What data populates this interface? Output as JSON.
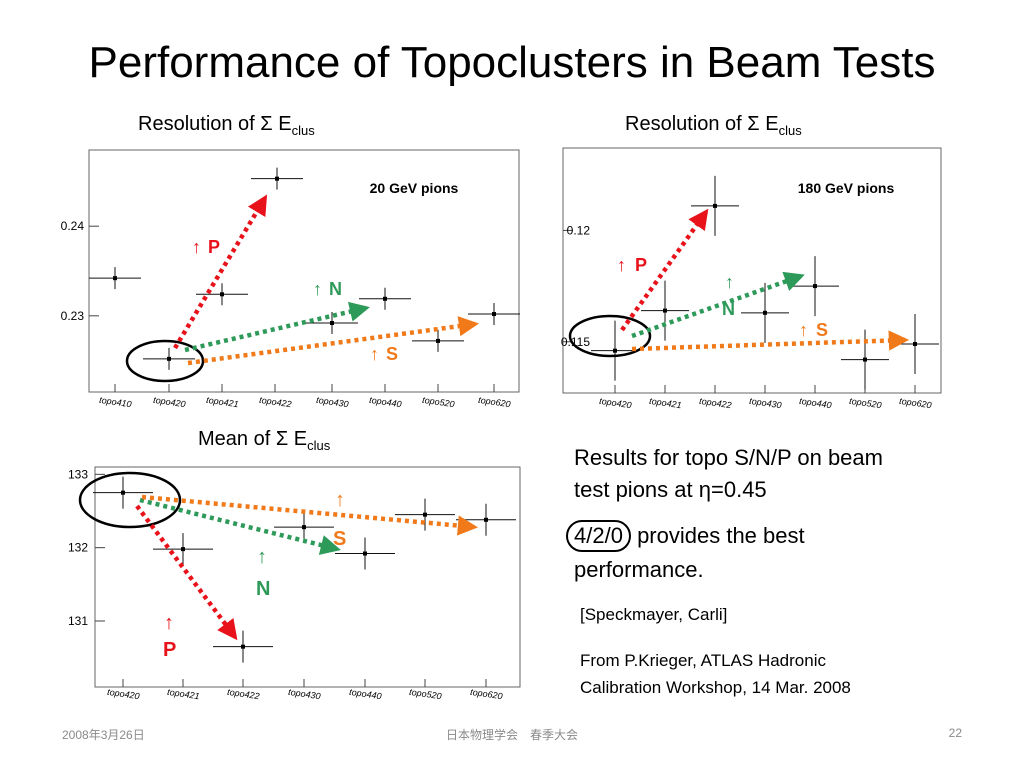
{
  "title": "Performance of Topoclusters in Beam Tests",
  "panels": {
    "p1": {
      "heading_prefix": "Resolution of ",
      "sigma": "Σ",
      "heading_e": " E",
      "heading_sub": "clus",
      "label": "20 GeV pions"
    },
    "p2": {
      "heading_prefix": "Resolution of ",
      "sigma": "Σ",
      "heading_e": " E",
      "heading_sub": "clus",
      "label": "180 GeV pions"
    },
    "p3": {
      "heading_prefix": "Mean of ",
      "sigma": "Σ",
      "heading_e": " E",
      "heading_sub": "clus"
    }
  },
  "arrow_labels": {
    "up": "↑",
    "P": "P",
    "N": "N",
    "S": "S"
  },
  "colors": {
    "P": "#e8121b",
    "N": "#2e9a5a",
    "S": "#f07a1a",
    "panel_label": "#1a1acc",
    "footer": "#8a8a8a"
  },
  "text": {
    "results_line1": "Results for topo S/N/P on beam",
    "results_line2_pre": "test pions at ",
    "eta": "η",
    "results_line2_post": "=0.45",
    "best_boxed": "4/2/0",
    "best_line1_rest": "provides the best",
    "best_line2": "performance.",
    "citation": "[Speckmayer, Carli]",
    "source_line1": "From P.Krieger, ATLAS Hadronic",
    "source_line2": "Calibration Workshop, 14 Mar. 2008"
  },
  "footer": {
    "date": "2008年3月26日",
    "event": "日本物理学会　春季大会",
    "page": "22"
  },
  "chart_data": [
    {
      "type": "scatter",
      "categories": [
        "topo410",
        "topo420",
        "topo421",
        "topo422",
        "topo430",
        "topo440",
        "topo520",
        "topo620"
      ],
      "values": [
        0.2342,
        0.2252,
        0.2324,
        null,
        0.2292,
        0.2319,
        0.2272,
        0.2302
      ],
      "extra_points": [
        {
          "category": "topo421",
          "between": "topo420",
          "value": 0.2453
        }
      ],
      "y_ticks": [
        0.23,
        0.24
      ],
      "ylim": [
        0.2215,
        0.2485
      ],
      "label": "20 GeV pions"
    },
    {
      "type": "scatter",
      "categories": [
        "topo420",
        "topo421",
        "topo422",
        "topo430",
        "topo440",
        "topo520",
        "topo620"
      ],
      "values": [
        0.1146,
        0.1164,
        0.1211,
        0.1163,
        0.1175,
        0.1142,
        0.1149
      ],
      "y_ticks": [
        0.115,
        0.12
      ],
      "ylim": [
        0.1127,
        0.1237
      ],
      "label": "180 GeV pions"
    },
    {
      "type": "scatter",
      "categories": [
        "topo420",
        "topo421",
        "topo422",
        "topo430",
        "topo440",
        "topo520",
        "topo620"
      ],
      "values": [
        132.75,
        131.98,
        130.65,
        132.28,
        131.92,
        132.45,
        132.38
      ],
      "y_ticks": [
        131,
        132,
        133
      ],
      "ylim": [
        130.1,
        133.1
      ]
    }
  ]
}
